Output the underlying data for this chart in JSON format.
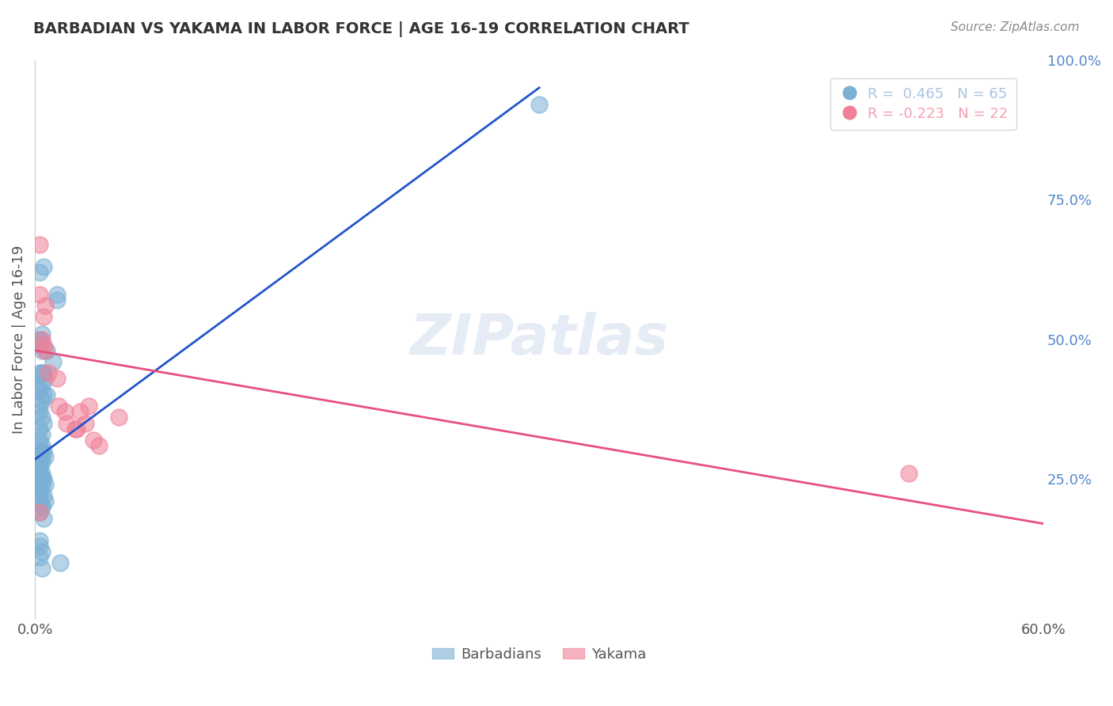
{
  "title": "BARBADIAN VS YAKAMA IN LABOR FORCE | AGE 16-19 CORRELATION CHART",
  "source": "Source: ZipAtlas.com",
  "xlabel": "",
  "ylabel": "In Labor Force | Age 16-19",
  "xlim": [
    0.0,
    0.6
  ],
  "ylim": [
    0.0,
    1.0
  ],
  "x_ticks": [
    0.0,
    0.1,
    0.2,
    0.3,
    0.4,
    0.5,
    0.6
  ],
  "x_tick_labels": [
    "0.0%",
    "",
    "",
    "",
    "",
    "",
    "60.0%"
  ],
  "y_ticks_right": [
    0.25,
    0.5,
    0.75,
    1.0
  ],
  "y_tick_labels_right": [
    "25.0%",
    "50.0%",
    "75.0%",
    "100.0%"
  ],
  "watermark": "ZIPatlas",
  "legend_entries": [
    {
      "label": "R =  0.465   N = 65",
      "color": "#a8c4e0"
    },
    {
      "label": "R = -0.223   N = 22",
      "color": "#f4a0b0"
    }
  ],
  "barbadian_color": "#7bafd4",
  "yakama_color": "#f08098",
  "blue_line_color": "#2255cc",
  "pink_line_color": "#e85080",
  "grid_color": "#cccccc",
  "title_color": "#333333",
  "right_label_color": "#5588cc",
  "barbadians_label": "Barbadians",
  "yakama_label": "Yakama",
  "barbadian_x": [
    0.004,
    0.003,
    0.005,
    0.006,
    0.004,
    0.003,
    0.002,
    0.005,
    0.007,
    0.004,
    0.003,
    0.003,
    0.004,
    0.005,
    0.003,
    0.004,
    0.003,
    0.004,
    0.003,
    0.003,
    0.004,
    0.005,
    0.003,
    0.003,
    0.004,
    0.003,
    0.004,
    0.003,
    0.003,
    0.004,
    0.005,
    0.003,
    0.004,
    0.006,
    0.003,
    0.003,
    0.003,
    0.005,
    0.003,
    0.006,
    0.004,
    0.004,
    0.003,
    0.005,
    0.013,
    0.013,
    0.003,
    0.003,
    0.004,
    0.003,
    0.005,
    0.011,
    0.006,
    0.007,
    0.003,
    0.004,
    0.004,
    0.003,
    0.003,
    0.003,
    0.004,
    0.003,
    0.015,
    0.004,
    0.3
  ],
  "barbadian_y": [
    0.44,
    0.44,
    0.44,
    0.43,
    0.42,
    0.41,
    0.41,
    0.4,
    0.4,
    0.39,
    0.38,
    0.37,
    0.36,
    0.35,
    0.34,
    0.33,
    0.32,
    0.31,
    0.3,
    0.3,
    0.3,
    0.3,
    0.29,
    0.28,
    0.28,
    0.27,
    0.26,
    0.26,
    0.25,
    0.25,
    0.25,
    0.24,
    0.24,
    0.24,
    0.23,
    0.23,
    0.22,
    0.22,
    0.21,
    0.21,
    0.2,
    0.2,
    0.19,
    0.18,
    0.57,
    0.58,
    0.5,
    0.5,
    0.51,
    0.62,
    0.63,
    0.46,
    0.29,
    0.48,
    0.49,
    0.48,
    0.29,
    0.26,
    0.14,
    0.13,
    0.12,
    0.11,
    0.1,
    0.09,
    0.92
  ],
  "yakama_x": [
    0.003,
    0.003,
    0.006,
    0.005,
    0.004,
    0.005,
    0.006,
    0.008,
    0.013,
    0.014,
    0.018,
    0.019,
    0.024,
    0.025,
    0.027,
    0.03,
    0.032,
    0.035,
    0.038,
    0.05,
    0.52,
    0.003
  ],
  "yakama_y": [
    0.67,
    0.58,
    0.56,
    0.54,
    0.5,
    0.49,
    0.48,
    0.44,
    0.43,
    0.38,
    0.37,
    0.35,
    0.34,
    0.34,
    0.37,
    0.35,
    0.38,
    0.32,
    0.31,
    0.36,
    0.26,
    0.19
  ],
  "blue_line_x": [
    0.0,
    0.3
  ],
  "blue_line_y": [
    0.285,
    0.95
  ],
  "pink_line_x": [
    0.0,
    0.6
  ],
  "pink_line_y": [
    0.48,
    0.17
  ]
}
